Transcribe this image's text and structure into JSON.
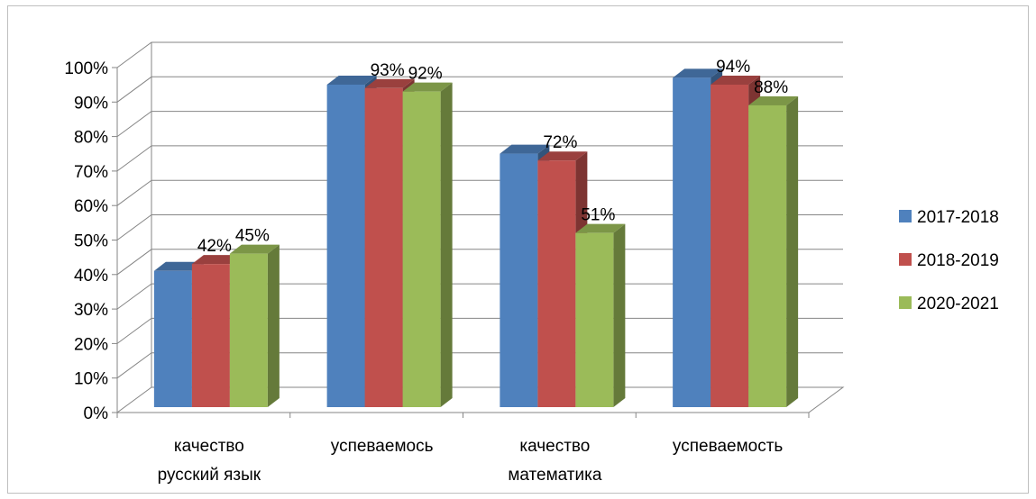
{
  "chart_data": {
    "type": "bar",
    "title": "",
    "xlabel": "",
    "ylabel": "",
    "ylim": [
      0,
      100
    ],
    "y_ticks": [
      "0%",
      "10%",
      "20%",
      "30%",
      "40%",
      "50%",
      "60%",
      "70%",
      "80%",
      "90%",
      "100%"
    ],
    "categories": [
      [
        "качество",
        "русский язык"
      ],
      [
        "успеваемось"
      ],
      [
        "качество",
        "математика"
      ],
      [
        "успеваемость"
      ]
    ],
    "series": [
      {
        "name": "2017-2018",
        "values": [
          40,
          94,
          74,
          96
        ],
        "color": "#4f81bd",
        "labels": [
          "",
          "",
          "",
          ""
        ]
      },
      {
        "name": "2018-2019",
        "values": [
          42,
          93,
          72,
          94
        ],
        "color": "#c0504d",
        "labels": [
          "42%",
          "93%",
          "72%",
          "94%"
        ]
      },
      {
        "name": "2020-2021",
        "values": [
          45,
          92,
          51,
          88
        ],
        "color": "#9bbb59",
        "labels": [
          "45%",
          "92%",
          "51%",
          "88%"
        ]
      }
    ],
    "style": "3d-clustered-column",
    "grid": true,
    "legend": "right"
  }
}
